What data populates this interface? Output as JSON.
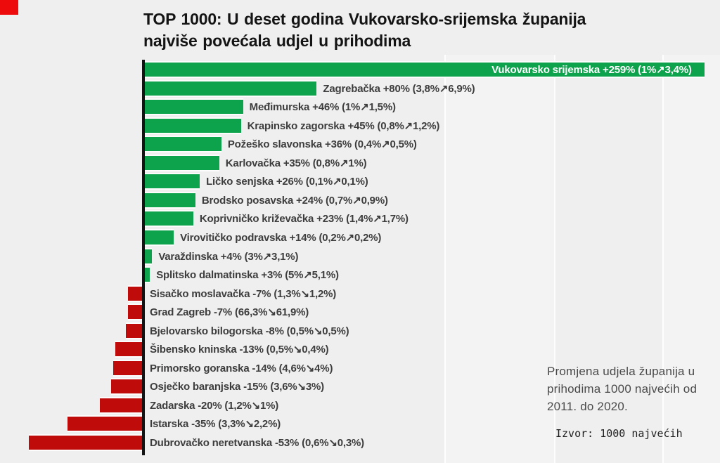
{
  "header": {
    "title_lines": [
      "TOP 1000: U deset godina Vukovarsko-srijemska županija",
      "najviše povećala udjel u prihodima"
    ]
  },
  "annotation": {
    "lines": [
      "Promjena udjela županija u",
      "prihodima 1000 najvećih od",
      "2011. do 2020."
    ]
  },
  "source": {
    "label": "Izvor: 1000 najvećih"
  },
  "colors": {
    "positive_bar": "#0da24c",
    "negative_bar": "#c00b0b",
    "brand_square": "#ee0b0b",
    "background": "#f0eff0"
  },
  "chart_data": {
    "type": "bar",
    "orientation": "horizontal",
    "value_unit": "%",
    "title": "TOP 1000: U deset godina Vukovarsko-srijemska županija najviše povećala udjel u prihodima",
    "legend_position": "none",
    "grid": "faint-vertical",
    "bars": [
      {
        "name": "Vukovarsko srijemska",
        "pct": 259,
        "share_2011": "1%",
        "share_2020": "3,4%",
        "label": "Vukovarsko srijemska +259% (1%↗3,4%)"
      },
      {
        "name": "Zagrebačka",
        "pct": 80,
        "share_2011": "3,8%",
        "share_2020": "6,9%",
        "label": "Zagrebačka +80% (3,8%↗6,9%)"
      },
      {
        "name": "Međimurska",
        "pct": 46,
        "share_2011": "1%",
        "share_2020": "1,5%",
        "label": "Međimurska +46% (1%↗1,5%)"
      },
      {
        "name": "Krapinsko zagorska",
        "pct": 45,
        "share_2011": "0,8%",
        "share_2020": "1,2%",
        "label": "Krapinsko zagorska +45% (0,8%↗1,2%)"
      },
      {
        "name": "Požeško slavonska",
        "pct": 36,
        "share_2011": "0,4%",
        "share_2020": "0,5%",
        "label": "Požeško slavonska +36% (0,4%↗0,5%)"
      },
      {
        "name": "Karlovačka",
        "pct": 35,
        "share_2011": "0,8%",
        "share_2020": "1%",
        "label": "Karlovačka +35% (0,8%↗1%)"
      },
      {
        "name": "Ličko senjska",
        "pct": 26,
        "share_2011": "0,1%",
        "share_2020": "0,1%",
        "label": "Ličko senjska +26% (0,1%↗0,1%)"
      },
      {
        "name": "Brodsko posavska",
        "pct": 24,
        "share_2011": "0,7%",
        "share_2020": "0,9%",
        "label": "Brodsko posavska +24% (0,7%↗0,9%)"
      },
      {
        "name": "Koprivničko križevačka",
        "pct": 23,
        "share_2011": "1,4%",
        "share_2020": "1,7%",
        "label": "Koprivničko križevačka +23% (1,4%↗1,7%)"
      },
      {
        "name": "Virovitičko podravska",
        "pct": 14,
        "share_2011": "0,2%",
        "share_2020": "0,2%",
        "label": "Virovitičko podravska +14% (0,2%↗0,2%)"
      },
      {
        "name": "Varaždinska",
        "pct": 4,
        "share_2011": "3%",
        "share_2020": "3,1%",
        "label": "Varaždinska +4% (3%↗3,1%)"
      },
      {
        "name": "Splitsko dalmatinska",
        "pct": 3,
        "share_2011": "5%",
        "share_2020": "5,1%",
        "label": "Splitsko dalmatinska +3% (5%↗5,1%)"
      },
      {
        "name": "Sisačko moslavačka",
        "pct": -7,
        "share_2011": "1,3%",
        "share_2020": "1,2%",
        "label": "Sisačko moslavačka -7% (1,3%↘1,2%)"
      },
      {
        "name": "Grad Zagreb",
        "pct": -7,
        "share_2011": "66,3%",
        "share_2020": "61,9%",
        "label": "Grad Zagreb -7% (66,3%↘61,9%)"
      },
      {
        "name": "Bjelovarsko bilogorska",
        "pct": -8,
        "share_2011": "0,5%",
        "share_2020": "0,5%",
        "label": "Bjelovarsko bilogorska -8% (0,5%↘0,5%)"
      },
      {
        "name": "Šibensko kninska",
        "pct": -13,
        "share_2011": "0,5%",
        "share_2020": "0,4%",
        "label": "Šibensko kninska -13% (0,5%↘0,4%)"
      },
      {
        "name": "Primorsko goranska",
        "pct": -14,
        "share_2011": "4,6%",
        "share_2020": "4%",
        "label": "Primorsko goranska -14% (4,6%↘4%)"
      },
      {
        "name": "Osječko baranjska",
        "pct": -15,
        "share_2011": "3,6%",
        "share_2020": "3%",
        "label": "Osječko baranjska -15% (3,6%↘3%)"
      },
      {
        "name": "Zadarska",
        "pct": -20,
        "share_2011": "1,2%",
        "share_2020": "1%",
        "label": "Zadarska -20% (1,2%↘1%)"
      },
      {
        "name": "Istarska",
        "pct": -35,
        "share_2011": "3,3%",
        "share_2020": "2,2%",
        "label": "Istarska -35% (3,3%↘2,2%)"
      },
      {
        "name": "Dubrovačko neretvanska",
        "pct": -53,
        "share_2011": "0,6%",
        "share_2020": "0,3%",
        "label": "Dubrovačko neretvanska -53% (0,6%↘0,3%)"
      }
    ]
  }
}
